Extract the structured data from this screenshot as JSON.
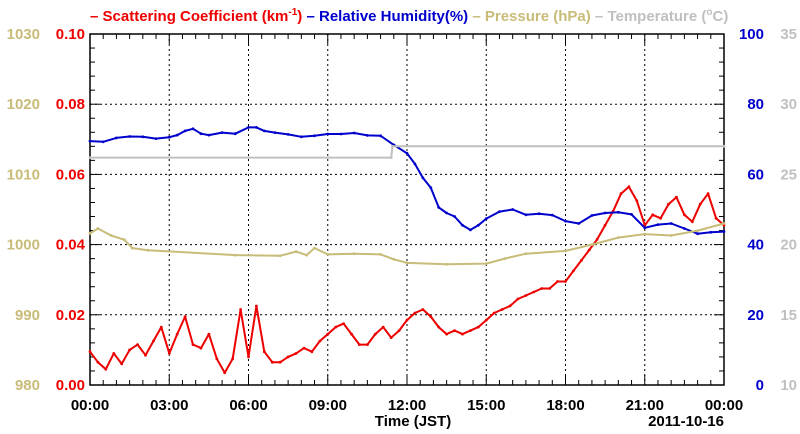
{
  "chart_data": {
    "type": "line",
    "date_label": "2011-10-16",
    "x_axis": {
      "label": "Time (JST)",
      "ticks": [
        "00:00",
        "03:00",
        "06:00",
        "09:00",
        "12:00",
        "15:00",
        "18:00",
        "21:00",
        "00:00"
      ],
      "range_hours": [
        0,
        24
      ],
      "grid": true
    },
    "legend": [
      {
        "dash": "–",
        "text_pre": "Scattering Coefficient (km",
        "sup": "-1",
        "text_post": ")",
        "color": "#ee0000"
      },
      {
        "dash": "–",
        "text_pre": "Relative Humidity(%)",
        "sup": "",
        "text_post": "",
        "color": "#0000cc"
      },
      {
        "dash": "–",
        "text_pre": "Pressure (hPa)",
        "sup": "",
        "text_post": "",
        "color": "#c8bc78"
      },
      {
        "dash": "–",
        "text_pre": "Temperature (",
        "sup": "o",
        "text_post": "C)",
        "color": "#c0c0c0"
      }
    ],
    "axes": {
      "pressure": {
        "ticks": [
          "980",
          "990",
          "1000",
          "1010",
          "1020",
          "1030"
        ],
        "range": [
          980,
          1030
        ],
        "color": "#c8bc78"
      },
      "scattering": {
        "ticks": [
          "0.00",
          "0.02",
          "0.04",
          "0.06",
          "0.08",
          "0.10"
        ],
        "range": [
          0,
          0.1
        ],
        "color": "#ee0000"
      },
      "humidity": {
        "ticks": [
          "0",
          "20",
          "40",
          "60",
          "80",
          "100"
        ],
        "range": [
          0,
          100
        ],
        "color": "#0000cc"
      },
      "temperature": {
        "ticks": [
          "10",
          "15",
          "20",
          "25",
          "30",
          "35"
        ],
        "range": [
          10,
          35
        ],
        "color": "#c0c0c0"
      }
    },
    "series": [
      {
        "name": "Scattering Coefficient",
        "color": "#ee0000",
        "axis": "scattering",
        "x_hours": [
          0,
          0.3,
          0.6,
          0.9,
          1.2,
          1.5,
          1.8,
          2.1,
          2.4,
          2.7,
          3.0,
          3.3,
          3.6,
          3.9,
          4.2,
          4.5,
          4.8,
          5.1,
          5.4,
          5.7,
          6.0,
          6.3,
          6.6,
          6.9,
          7.2,
          7.5,
          7.8,
          8.1,
          8.4,
          8.7,
          9.0,
          9.3,
          9.6,
          9.9,
          10.2,
          10.5,
          10.8,
          11.1,
          11.4,
          11.7,
          12.0,
          12.3,
          12.6,
          12.9,
          13.2,
          13.5,
          13.8,
          14.1,
          14.4,
          14.7,
          15.0,
          15.3,
          15.6,
          15.9,
          16.2,
          16.5,
          16.8,
          17.1,
          17.4,
          17.7,
          18.0,
          18.3,
          18.6,
          18.9,
          19.2,
          19.5,
          19.8,
          20.1,
          20.4,
          20.7,
          21.0,
          21.3,
          21.6,
          21.9,
          22.2,
          22.5,
          22.8,
          23.1,
          23.4,
          23.7,
          24.0
        ],
        "values": [
          0.0095,
          0.0065,
          0.0045,
          0.009,
          0.006,
          0.01,
          0.0115,
          0.0085,
          0.0125,
          0.0165,
          0.009,
          0.0145,
          0.0195,
          0.0115,
          0.0105,
          0.0145,
          0.0075,
          0.0035,
          0.0075,
          0.0215,
          0.008,
          0.0225,
          0.0095,
          0.0065,
          0.0065,
          0.008,
          0.009,
          0.0105,
          0.0095,
          0.0125,
          0.0145,
          0.0165,
          0.0175,
          0.0145,
          0.0115,
          0.0115,
          0.0145,
          0.0165,
          0.0135,
          0.0155,
          0.0185,
          0.0205,
          0.0215,
          0.0195,
          0.0165,
          0.0145,
          0.0155,
          0.0145,
          0.0155,
          0.0165,
          0.0185,
          0.0205,
          0.0215,
          0.0225,
          0.0245,
          0.0255,
          0.0265,
          0.0275,
          0.0275,
          0.0295,
          0.0295,
          0.0325,
          0.0355,
          0.0385,
          0.0415,
          0.0455,
          0.0495,
          0.0545,
          0.0565,
          0.0525,
          0.0455,
          0.0485,
          0.0475,
          0.0515,
          0.0535,
          0.0485,
          0.0465,
          0.0515,
          0.0545,
          0.0475,
          0.0455
        ]
      },
      {
        "name": "Relative Humidity",
        "color": "#0000cc",
        "axis": "humidity",
        "x_hours": [
          0,
          0.5,
          1.0,
          1.5,
          2.0,
          2.5,
          3.0,
          3.3,
          3.6,
          3.9,
          4.2,
          4.5,
          5.0,
          5.5,
          6.0,
          6.3,
          6.6,
          7.0,
          7.5,
          8.0,
          8.5,
          9.0,
          9.5,
          10.0,
          10.5,
          11.0,
          11.5,
          12.0,
          12.3,
          12.6,
          12.9,
          13.2,
          13.5,
          13.8,
          14.1,
          14.4,
          14.7,
          15.0,
          15.5,
          16.0,
          16.5,
          17.0,
          17.5,
          18.0,
          18.5,
          19.0,
          19.5,
          20.0,
          20.5,
          21.0,
          21.5,
          22.0,
          22.5,
          23.0,
          23.5,
          24.0
        ],
        "values": [
          69.5,
          69.3,
          70.4,
          70.8,
          70.7,
          70.2,
          70.6,
          71.2,
          72.4,
          73.0,
          71.6,
          71.2,
          71.9,
          71.6,
          73.4,
          73.4,
          72.4,
          71.9,
          71.4,
          70.7,
          71.0,
          71.5,
          71.5,
          71.8,
          71.1,
          71.0,
          68.4,
          66.0,
          63.0,
          59.0,
          56.2,
          50.6,
          49.0,
          48.0,
          45.5,
          44.2,
          45.5,
          47.4,
          49.4,
          50.0,
          48.5,
          48.8,
          48.4,
          46.7,
          46.0,
          48.3,
          49.0,
          49.2,
          48.6,
          44.8,
          45.7,
          46.0,
          44.6,
          43.1,
          43.5,
          43.7
        ]
      },
      {
        "name": "Pressure",
        "color": "#c8bc78",
        "axis": "pressure",
        "x_hours": [
          0,
          0.3,
          0.8,
          1.3,
          1.6,
          2.2,
          5.5,
          7.2,
          7.8,
          8.2,
          8.5,
          9.0,
          10.0,
          11.0,
          11.5,
          12.0,
          13.5,
          15.0,
          15.7,
          16.5,
          18.0,
          19.0,
          20.0,
          21.0,
          22.0,
          23.0,
          24.0
        ],
        "values": [
          1001.6,
          1002.3,
          1001.3,
          1000.7,
          999.5,
          999.2,
          998.5,
          998.4,
          999.0,
          998.5,
          999.5,
          998.6,
          998.7,
          998.6,
          997.9,
          997.4,
          997.2,
          997.3,
          998.0,
          998.7,
          999.1,
          1000.0,
          1001.0,
          1001.5,
          1001.3,
          1002.0,
          1003.0
        ]
      },
      {
        "name": "Temperature",
        "color": "#c0c0c0",
        "axis": "temperature",
        "x_hours": [
          0,
          11.4,
          11.45,
          24
        ],
        "values": [
          26.2,
          26.2,
          27.0,
          27.0
        ]
      }
    ]
  }
}
